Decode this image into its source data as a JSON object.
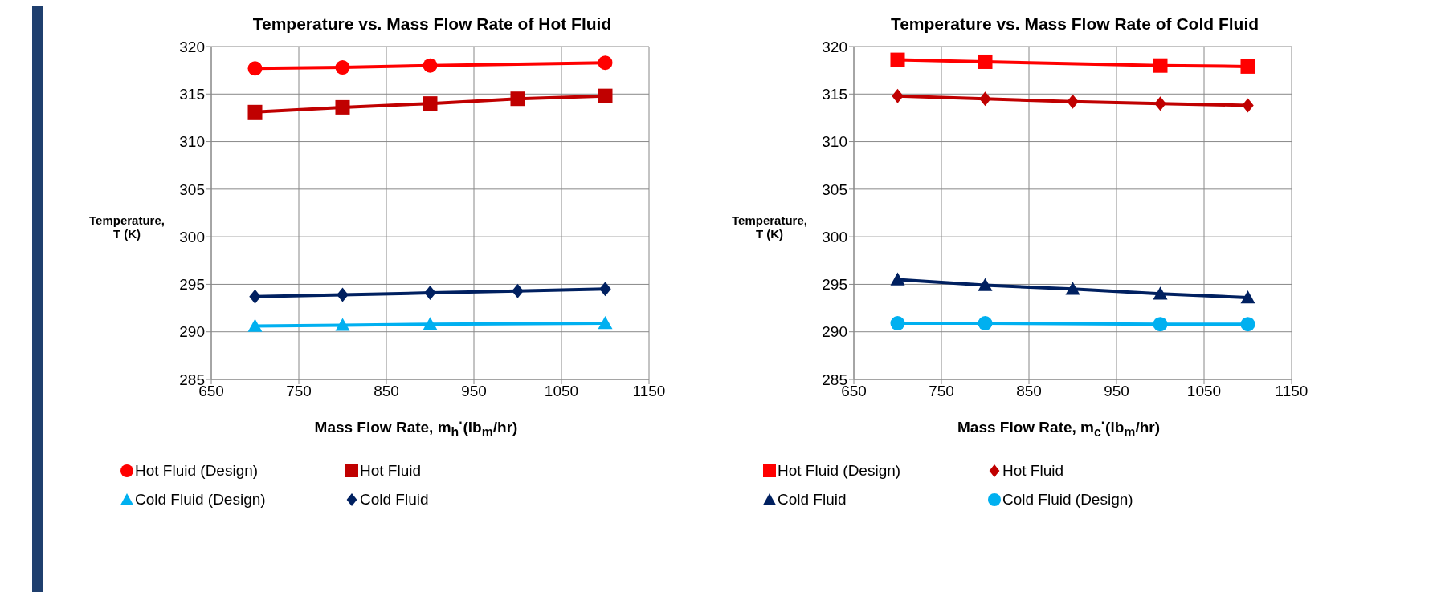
{
  "chart_data": [
    {
      "type": "line",
      "title": "Temperature vs. Mass Flow Rate of Hot Fluid",
      "xlabel": "Mass Flow Rate, m$_{h}$$^{·}$(lb$_{m}$/hr)",
      "ylabel": "Temperature, T (K)",
      "x": [
        700,
        800,
        900,
        1000,
        1100
      ],
      "xlim": [
        650,
        1150
      ],
      "xticks": [
        650,
        750,
        850,
        950,
        1050,
        1150
      ],
      "ylim": [
        285,
        320
      ],
      "yticks": [
        285,
        290,
        295,
        300,
        305,
        310,
        315,
        320
      ],
      "grid": true,
      "legend": "bottom",
      "series": [
        {
          "name": "Hot Fluid (Design)",
          "color": "#ff0000",
          "marker": "circle",
          "values": [
            317.7,
            317.8,
            318.0,
            null,
            318.3
          ]
        },
        {
          "name": "Hot Fluid",
          "color": "#c00000",
          "marker": "square",
          "values": [
            313.1,
            313.6,
            314.0,
            314.5,
            314.8
          ]
        },
        {
          "name": "Cold Fluid (Design)",
          "color": "#00b0f0",
          "marker": "triangle",
          "values": [
            290.6,
            290.7,
            290.8,
            null,
            290.9
          ]
        },
        {
          "name": "Cold Fluid",
          "color": "#002060",
          "marker": "diamond",
          "values": [
            293.7,
            293.9,
            294.1,
            294.3,
            294.5
          ]
        }
      ]
    },
    {
      "type": "line",
      "title": "Temperature vs. Mass Flow Rate of Cold Fluid",
      "xlabel": "Mass Flow Rate, m$_{c}$$^{·}$(lb$_{m}$/hr)",
      "ylabel": "Temperature, T (K)",
      "x": [
        700,
        800,
        900,
        1000,
        1100
      ],
      "xlim": [
        650,
        1150
      ],
      "xticks": [
        650,
        750,
        850,
        950,
        1050,
        1150
      ],
      "ylim": [
        285,
        320
      ],
      "yticks": [
        285,
        290,
        295,
        300,
        305,
        310,
        315,
        320
      ],
      "grid": true,
      "legend": "bottom",
      "series": [
        {
          "name": "Hot Fluid (Design)",
          "color": "#ff0000",
          "marker": "square",
          "values": [
            318.6,
            318.4,
            null,
            318.0,
            317.9
          ]
        },
        {
          "name": "Hot Fluid",
          "color": "#c00000",
          "marker": "diamond",
          "values": [
            314.8,
            314.5,
            314.2,
            314.0,
            313.8
          ]
        },
        {
          "name": "Cold Fluid",
          "color": "#002060",
          "marker": "triangle",
          "values": [
            295.5,
            294.9,
            294.5,
            294.0,
            293.6
          ]
        },
        {
          "name": "Cold Fluid (Design)",
          "color": "#00b0f0",
          "marker": "circle",
          "values": [
            290.9,
            290.9,
            null,
            290.8,
            290.8
          ]
        }
      ]
    }
  ]
}
